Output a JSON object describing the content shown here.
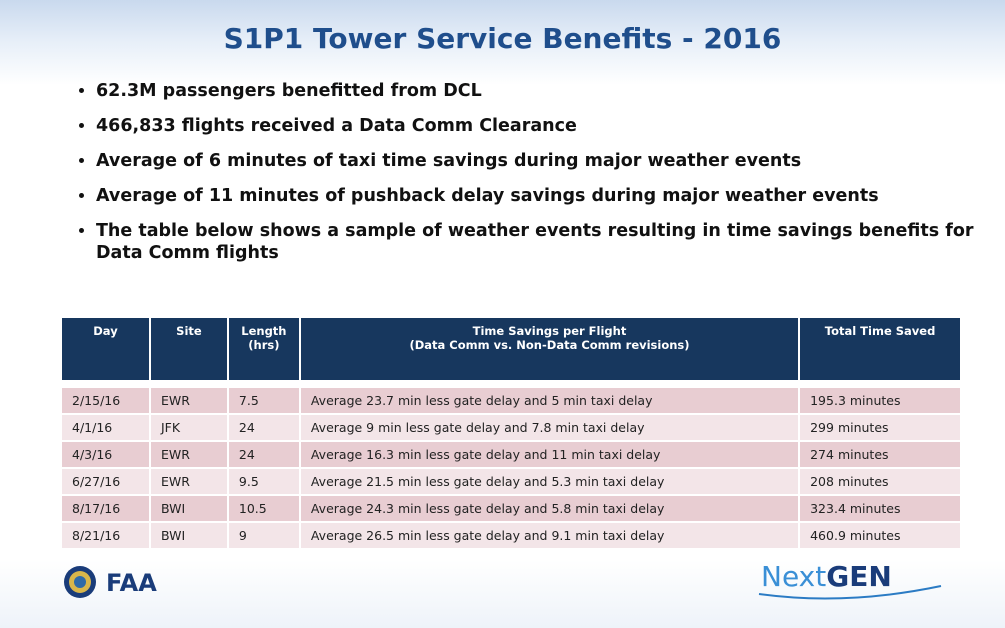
{
  "title": "S1P1 Tower Service Benefits - 2016",
  "bullets": [
    "62.3M passengers benefitted from DCL",
    "466,833 flights received a Data Comm Clearance",
    "Average of 6 minutes of taxi time savings during major weather events",
    "Average of 11 minutes of pushback delay savings during major weather events",
    "The table below shows a sample of weather events resulting in time savings benefits for Data Comm flights"
  ],
  "table": {
    "header": [
      "Day",
      "Site",
      "Length (hrs)",
      "Time Savings per Flight",
      "Total Time Saved"
    ],
    "header_note": "(Data Comm vs. Non-Data Comm revisions)",
    "rows": [
      [
        "2/15/16",
        "EWR",
        "7.5",
        "Average 23.7 min less gate delay and 5 min taxi delay",
        "195.3 minutes"
      ],
      [
        "4/1/16",
        "JFK",
        "24",
        "Average 9 min less gate delay and 7.8 min taxi delay",
        "299 minutes"
      ],
      [
        "4/3/16",
        "EWR",
        "24",
        "Average 16.3 min less gate delay and 11 min taxi delay",
        "274 minutes"
      ],
      [
        "6/27/16",
        "EWR",
        "9.5",
        "Average 21.5 min less gate delay and 5.3 min taxi delay",
        "208 minutes"
      ],
      [
        "8/17/16",
        "BWI",
        "10.5",
        "Average 24.3 min less gate delay and 5.8 min taxi delay",
        "323.4 minutes"
      ],
      [
        "8/21/16",
        "BWI",
        "9",
        "Average 26.5 min less gate delay and 9.1 min taxi delay",
        "460.9 minutes"
      ]
    ]
  },
  "logos": {
    "faa": "FAA",
    "nextgen_light": "Next",
    "nextgen_bold": "GEN"
  }
}
